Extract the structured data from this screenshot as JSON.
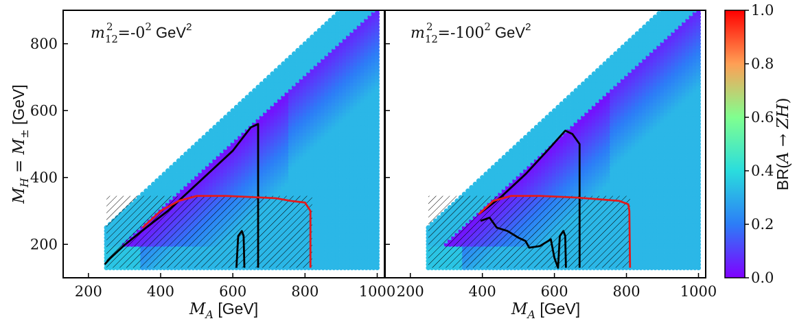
{
  "chart_data": [
    {
      "type": "scatter",
      "panel": "left",
      "annotation": {
        "main": "m",
        "sub": "12",
        "sup": "2",
        "rest": " =-0",
        "rest_sup": "2",
        "unit": " GeV",
        "unit_sup": "2"
      },
      "xlabel": {
        "main": "M",
        "sub": "A",
        "rest": " [GeV]"
      },
      "ylabel": {
        "text": "M_H = M_± [GeV]",
        "p1": "M",
        "s1": "H",
        "p2": " = M",
        "s2": "±",
        "p3": " [GeV]"
      },
      "xlim": [
        130,
        1020
      ],
      "ylim": [
        100,
        900
      ],
      "xticks": [
        200,
        400,
        600,
        800,
        1000
      ],
      "yticks": [
        200,
        400,
        600,
        800
      ],
      "data_domain": {
        "x_min": 250,
        "x_max": 1000,
        "y_min": 130,
        "y_max": 900
      },
      "shading": "light green near MA=MH diagonal, purple below diagonal at mid masses, cyan for large MA - MH",
      "hatched_region": {
        "x_min": 250,
        "x_max": 820,
        "y_min": 130,
        "y_max": 345
      },
      "black_contour": [
        [
          245,
          140
        ],
        [
          260,
          158
        ],
        [
          300,
          198
        ],
        [
          360,
          250
        ],
        [
          420,
          300
        ],
        [
          480,
          360
        ],
        [
          540,
          420
        ],
        [
          600,
          480
        ],
        [
          650,
          550
        ],
        [
          670,
          560
        ],
        [
          670,
          130
        ]
      ],
      "black_spike": [
        [
          610,
          130
        ],
        [
          615,
          225
        ],
        [
          625,
          240
        ],
        [
          630,
          225
        ],
        [
          632,
          130
        ]
      ],
      "red_contour": [
        [
          350,
          250
        ],
        [
          400,
          300
        ],
        [
          450,
          330
        ],
        [
          500,
          345
        ],
        [
          580,
          345
        ],
        [
          680,
          340
        ],
        [
          720,
          338
        ],
        [
          760,
          330
        ],
        [
          800,
          325
        ],
        [
          815,
          300
        ],
        [
          815,
          130
        ]
      ]
    },
    {
      "type": "scatter",
      "panel": "right",
      "annotation": {
        "main": "m",
        "sub": "12",
        "sup": "2",
        "rest": " =-100",
        "rest_sup": "2",
        "unit": " GeV",
        "unit_sup": "2"
      },
      "xlabel": {
        "main": "M",
        "sub": "A",
        "rest": " [GeV]"
      },
      "xlim": [
        130,
        1020
      ],
      "ylim": [
        100,
        900
      ],
      "xticks": [
        200,
        400,
        600,
        800,
        1000
      ],
      "yticks": [
        200,
        400,
        600,
        800
      ],
      "data_domain": {
        "x_min": 250,
        "x_max": 1000,
        "y_min": 130,
        "y_max": 900
      },
      "hatched_region": {
        "x_min": 250,
        "x_max": 810,
        "y_min": 130,
        "y_max": 345
      },
      "black_contour": [
        [
          390,
          290
        ],
        [
          450,
          340
        ],
        [
          520,
          410
        ],
        [
          580,
          480
        ],
        [
          630,
          540
        ],
        [
          650,
          530
        ],
        [
          670,
          500
        ],
        [
          670,
          130
        ]
      ],
      "black_wiggle": [
        [
          395,
          270
        ],
        [
          420,
          280
        ],
        [
          440,
          250
        ],
        [
          470,
          240
        ],
        [
          500,
          220
        ],
        [
          520,
          210
        ],
        [
          530,
          190
        ],
        [
          560,
          195
        ],
        [
          590,
          215
        ],
        [
          600,
          160
        ],
        [
          610,
          130
        ],
        [
          615,
          225
        ],
        [
          625,
          240
        ],
        [
          630,
          225
        ],
        [
          632,
          130
        ]
      ],
      "red_contour": [
        [
          390,
          290
        ],
        [
          430,
          330
        ],
        [
          480,
          345
        ],
        [
          560,
          345
        ],
        [
          660,
          340
        ],
        [
          720,
          335
        ],
        [
          780,
          330
        ],
        [
          805,
          320
        ],
        [
          808,
          300
        ],
        [
          810,
          130
        ]
      ]
    }
  ],
  "colorbar": {
    "label": {
      "main": "BR(A → ZH)",
      "pre": "BR(",
      "italic": "A → ZH",
      "post": ")"
    },
    "ticks": [
      "0.0",
      "0.2",
      "0.4",
      "0.6",
      "0.8",
      "1.0"
    ],
    "range": [
      0.0,
      1.0
    ],
    "colormap": "rainbow"
  },
  "colors": {
    "black_contour": "#000000",
    "red_contour": "#e31a1c",
    "hatch": "#000000"
  }
}
